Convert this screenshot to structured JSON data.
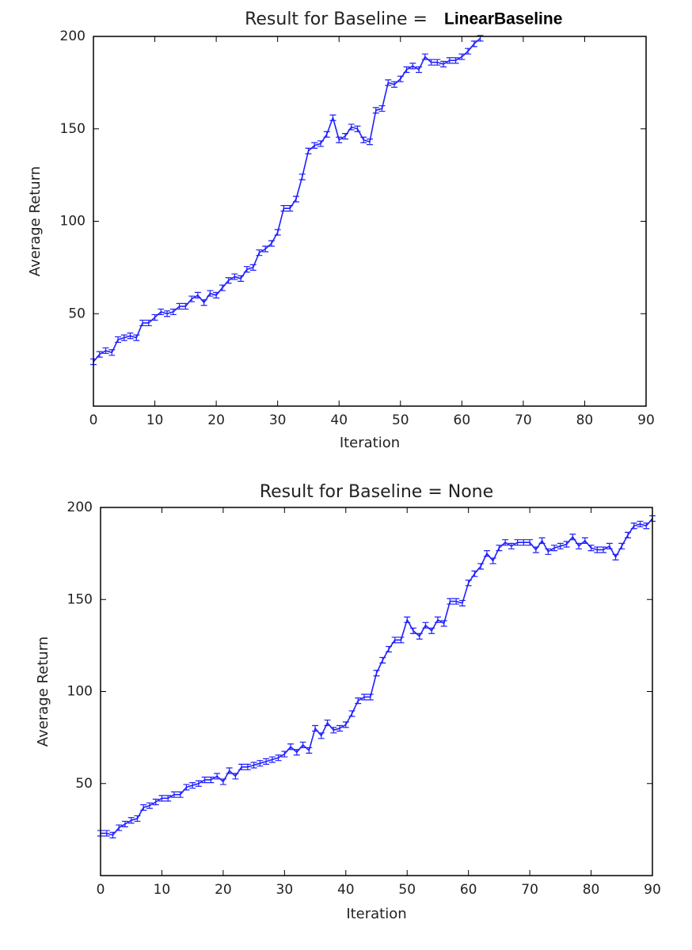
{
  "chart_data": [
    {
      "type": "line",
      "title": "Result for Baseline =",
      "title_highlight": "LinearBaseline",
      "xlabel": "Iteration",
      "ylabel": "Average Return",
      "xlim": [
        0,
        90
      ],
      "xticks": [
        0,
        10,
        20,
        30,
        40,
        50,
        60,
        70,
        80,
        90
      ],
      "ylim": [
        0,
        200
      ],
      "yticks": [
        50,
        100,
        150,
        200
      ],
      "series": [
        {
          "color": "#1f1fff",
          "error": 1.5,
          "x": [
            0,
            1,
            2,
            3,
            4,
            5,
            6,
            7,
            8,
            9,
            10,
            11,
            12,
            13,
            14,
            15,
            16,
            17,
            18,
            19,
            20,
            21,
            22,
            23,
            24,
            25,
            26,
            27,
            28,
            29,
            30,
            31,
            32,
            33,
            34,
            35,
            36,
            37,
            38,
            39,
            40,
            41,
            42,
            43,
            44,
            45,
            46,
            47,
            48,
            49,
            50,
            51,
            52,
            53,
            54,
            55,
            56,
            57,
            58,
            59,
            60,
            61,
            62,
            63
          ],
          "values": [
            24,
            28,
            30,
            29,
            36,
            37,
            38,
            37,
            45,
            45,
            48,
            51,
            50,
            51,
            54,
            54,
            58,
            60,
            56,
            61,
            60,
            64,
            68,
            70,
            69,
            74,
            75,
            83,
            85,
            88,
            94,
            107,
            107,
            112,
            124,
            138,
            141,
            142,
            147,
            156,
            144,
            146,
            151,
            150,
            144,
            143,
            160,
            161,
            175,
            174,
            177,
            182,
            184,
            182,
            189,
            186,
            186,
            185,
            187,
            187,
            189,
            192,
            196,
            199
          ]
        }
      ]
    },
    {
      "type": "line",
      "title": "Result for Baseline = None",
      "xlabel": "Iteration",
      "ylabel": "Average Return",
      "xlim": [
        0,
        90
      ],
      "xticks": [
        0,
        10,
        20,
        30,
        40,
        50,
        60,
        70,
        80,
        90
      ],
      "ylim": [
        0,
        200
      ],
      "yticks": [
        50,
        100,
        150,
        200
      ],
      "series": [
        {
          "color": "#1f1fff",
          "error": 1.5,
          "x": [
            0,
            1,
            2,
            3,
            4,
            5,
            6,
            7,
            8,
            9,
            10,
            11,
            12,
            13,
            14,
            15,
            16,
            17,
            18,
            19,
            20,
            21,
            22,
            23,
            24,
            25,
            26,
            27,
            28,
            29,
            30,
            31,
            32,
            33,
            34,
            35,
            36,
            37,
            38,
            39,
            40,
            41,
            42,
            43,
            44,
            45,
            46,
            47,
            48,
            49,
            50,
            51,
            52,
            53,
            54,
            55,
            56,
            57,
            58,
            59,
            60,
            61,
            62,
            63,
            64,
            65,
            66,
            67,
            68,
            69,
            70,
            71,
            72,
            73,
            74,
            75,
            76,
            77,
            78,
            79,
            80,
            81,
            82,
            83,
            84,
            85,
            86,
            87,
            88,
            89,
            90
          ],
          "values": [
            23,
            23,
            22,
            26,
            28,
            30,
            31,
            37,
            38,
            40,
            42,
            42,
            44,
            44,
            48,
            49,
            50,
            52,
            52,
            54,
            51,
            57,
            54,
            59,
            59,
            60,
            61,
            62,
            63,
            64,
            66,
            70,
            67,
            71,
            68,
            80,
            76,
            83,
            79,
            80,
            82,
            88,
            95,
            97,
            97,
            110,
            117,
            123,
            128,
            128,
            139,
            133,
            130,
            136,
            133,
            139,
            137,
            149,
            149,
            148,
            159,
            164,
            168,
            175,
            171,
            178,
            181,
            179,
            181,
            181,
            181,
            177,
            182,
            176,
            178,
            179,
            180,
            184,
            179,
            182,
            178,
            177,
            177,
            179,
            173,
            179,
            185,
            190,
            191,
            190,
            194
          ]
        }
      ]
    }
  ]
}
